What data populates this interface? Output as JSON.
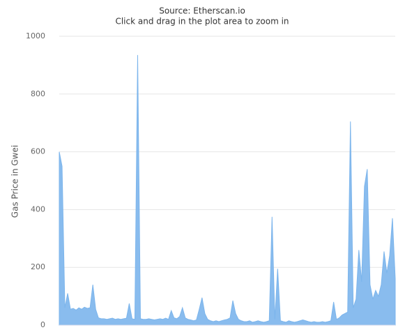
{
  "chart_data": {
    "type": "area",
    "title": "Source: Etherscan.io",
    "subtitle": "Click and drag in the plot area to zoom in",
    "y_label": "Gas Price in Gwei",
    "color": "#7cb5ec",
    "values": [
      600,
      550,
      60,
      110,
      55,
      58,
      52,
      60,
      55,
      62,
      58,
      60,
      140,
      55,
      25,
      22,
      22,
      20,
      22,
      24,
      20,
      22,
      20,
      22,
      24,
      75,
      22,
      20,
      935,
      22,
      20,
      20,
      22,
      20,
      18,
      20,
      22,
      20,
      24,
      20,
      50,
      25,
      22,
      30,
      60,
      25,
      20,
      18,
      15,
      18,
      55,
      95,
      40,
      20,
      15,
      12,
      15,
      12,
      15,
      18,
      20,
      25,
      85,
      40,
      20,
      15,
      12,
      12,
      15,
      10,
      12,
      15,
      12,
      10,
      12,
      15,
      375,
      20,
      195,
      15,
      12,
      10,
      15,
      12,
      10,
      12,
      15,
      18,
      15,
      12,
      10,
      12,
      10,
      10,
      12,
      10,
      12,
      15,
      80,
      20,
      25,
      35,
      40,
      45,
      705,
      60,
      90,
      260,
      150,
      480,
      540,
      140,
      90,
      120,
      100,
      140,
      255,
      180,
      240,
      370,
      160
    ],
    "ylim": [
      0,
      1000
    ],
    "yticks": [
      0,
      200,
      400,
      600,
      800,
      1000
    ],
    "grid": true
  }
}
